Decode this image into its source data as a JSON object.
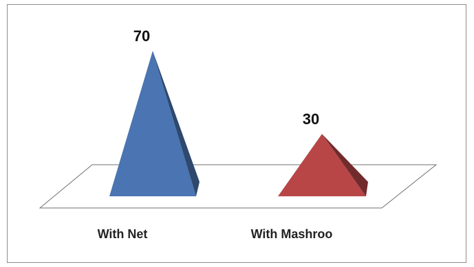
{
  "chart_data": {
    "type": "bar",
    "style": "3d-pyramid",
    "categories": [
      "With Net",
      "With Mashroo"
    ],
    "values": [
      70,
      30
    ],
    "data_labels": [
      "70",
      "30"
    ],
    "colors": [
      "#4a74b2",
      "#b84647"
    ],
    "ylim": [
      0,
      70
    ],
    "grid": false,
    "legend": "none"
  }
}
